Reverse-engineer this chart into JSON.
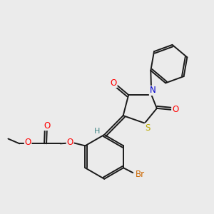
{
  "background_color": "#ebebeb",
  "bond_color": "#1a1a1a",
  "atom_colors": {
    "O": "#ff0000",
    "N": "#0000cc",
    "S": "#bbaa00",
    "Br": "#cc6600",
    "H": "#448888",
    "C": "#1a1a1a"
  },
  "figsize": [
    3.0,
    3.0
  ],
  "dpi": 100
}
